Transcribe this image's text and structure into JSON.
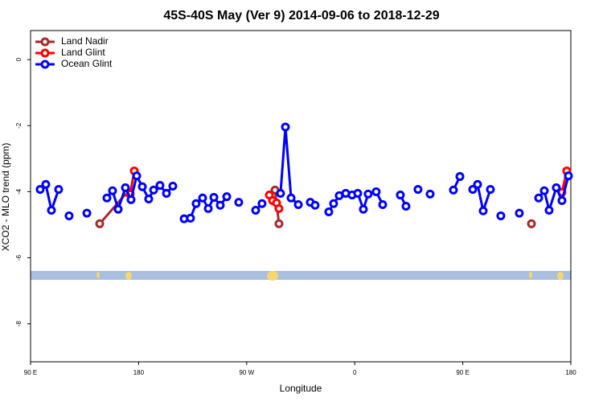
{
  "chart_data": {
    "type": "line",
    "title": "45S-40S May (Ver 9)   2014-09-06 to 2018-12-29",
    "xlabel": "Longitude",
    "ylabel": "XCO2 - MLO trend (ppm)",
    "xlim": [
      90,
      540
    ],
    "ylim": [
      -9.15,
      0.88
    ],
    "xticks": [
      {
        "value": 90,
        "label": "90 E"
      },
      180,
      {
        "value": 270,
        "label": "90 W"
      },
      {
        "value": 360,
        "label": "0"
      },
      {
        "value": 450,
        "label": "90 E"
      },
      {
        "value": 540,
        "label": "180"
      }
    ],
    "yticks": [
      0,
      -2,
      -4,
      -6,
      -8
    ],
    "legend": "top-left",
    "series": [
      {
        "name": "Land Nadir",
        "color": "#a52a2a",
        "x": [
          147.6,
          170.4,
          null,
          293.6,
          296.9,
          null,
          507.2
        ],
        "values": [
          -4.97,
          -4.02,
          null,
          -3.95,
          -4.97,
          null,
          -4.97
        ]
      },
      {
        "name": "Land Glint",
        "color": "#ff0000",
        "x": [
          173.0,
          176.4,
          null,
          288.9,
          291.6,
          294.9,
          296.9,
          null,
          532.6,
          536.6
        ],
        "values": [
          -4.07,
          -3.37,
          null,
          -4.1,
          -4.27,
          -4.34,
          -4.51,
          null,
          -4.02,
          -3.37
        ]
      },
      {
        "name": "Ocean Glint",
        "color": "#0000ff",
        "x": [
          98.0,
          102.7,
          107.4,
          113.4,
          null,
          122.1,
          null,
          136.9,
          null,
          153.6,
          158.3,
          163.0,
          169.0,
          173.7,
          178.4,
          183.1,
          188.4,
          192.5,
          197.8,
          203.2,
          208.5,
          null,
          217.9,
          223.2,
          227.9,
          233.3,
          238.0,
          242.7,
          248.0,
          253.4,
          null,
          263.4,
          null,
          277.5,
          282.8,
          null,
          298.2,
          302.3,
          307.0,
          313.0,
          null,
          323.0,
          327.0,
          null,
          338.4,
          342.4,
          347.1,
          352.5,
          357.8,
          362.5,
          367.2,
          371.2,
          377.9,
          383.3,
          null,
          398.0,
          402.7,
          null,
          412.7,
          null,
          422.8,
          null,
          442.2,
          447.6,
          null,
          458.3,
          462.3,
          467.0,
          473.0,
          null,
          481.7,
          null,
          497.1,
          null,
          513.2,
          517.9,
          521.9,
          527.9,
          532.6,
          538.0
        ],
        "values": [
          -3.93,
          -3.78,
          -4.56,
          -3.93,
          null,
          -4.73,
          null,
          -4.65,
          null,
          -4.19,
          -3.97,
          -4.53,
          -3.88,
          -4.24,
          -3.52,
          -3.85,
          -4.22,
          -3.95,
          -3.81,
          -4.05,
          -3.83,
          null,
          -4.82,
          -4.8,
          -4.36,
          -4.19,
          -4.51,
          -4.17,
          -4.41,
          -4.15,
          null,
          -4.32,
          null,
          -4.56,
          -4.36,
          null,
          -4.05,
          -2.04,
          -4.19,
          -4.39,
          null,
          -4.32,
          -4.41,
          null,
          -4.61,
          -4.36,
          -4.12,
          -4.05,
          -4.1,
          -4.05,
          -4.53,
          -4.07,
          -4.0,
          -4.39,
          null,
          -4.1,
          -4.44,
          null,
          -3.93,
          null,
          -4.07,
          null,
          -3.95,
          -3.54,
          null,
          -3.93,
          -3.78,
          -4.58,
          -3.93,
          null,
          -4.73,
          null,
          -4.65,
          null,
          -4.19,
          -3.97,
          -4.56,
          -3.88,
          -4.27,
          -3.52
        ]
      }
    ]
  }
}
